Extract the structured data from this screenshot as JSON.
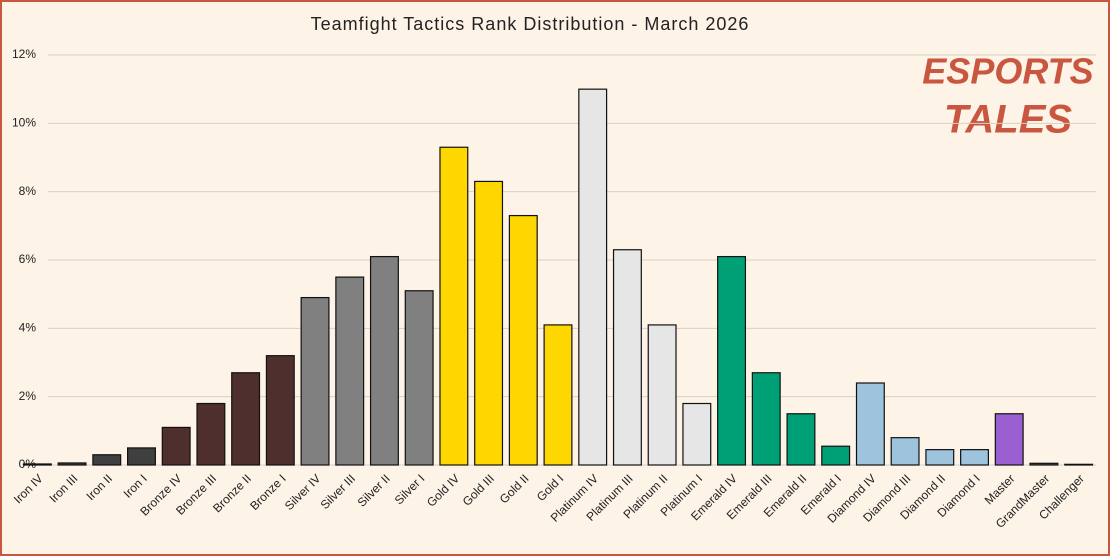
{
  "chart_data": {
    "type": "bar",
    "title": "Teamfight Tactics Rank Distribution - March 2026",
    "logo": [
      "ESPORTS",
      "TALES"
    ],
    "categories": [
      "Iron IV",
      "Iron III",
      "Iron II",
      "Iron I",
      "Bronze IV",
      "Bronze III",
      "Bronze II",
      "Bronze I",
      "Silver IV",
      "Silver III",
      "Silver II",
      "Silver I",
      "Gold IV",
      "Gold III",
      "Gold II",
      "Gold I",
      "Platinum IV",
      "Platinum III",
      "Platinum II",
      "Platinum I",
      "Emerald IV",
      "Emerald III",
      "Emerald II",
      "Emerald I",
      "Diamond IV",
      "Diamond III",
      "Diamond II",
      "Diamond I",
      "Master",
      "GrandMaster",
      "Challenger"
    ],
    "values": [
      0.03,
      0.06,
      0.3,
      0.5,
      1.1,
      1.8,
      2.7,
      3.2,
      4.9,
      5.5,
      6.1,
      5.1,
      9.3,
      8.3,
      7.3,
      4.1,
      11.0,
      6.3,
      4.1,
      1.8,
      6.1,
      2.7,
      1.5,
      0.55,
      2.4,
      0.8,
      0.45,
      0.45,
      1.5,
      0.05,
      0.02
    ],
    "colors": [
      "#3f3f3f",
      "#3f3f3f",
      "#3f3f3f",
      "#3f3f3f",
      "#4e2f2d",
      "#4e2f2d",
      "#4e2f2d",
      "#4e2f2d",
      "#808080",
      "#808080",
      "#808080",
      "#808080",
      "#ffd700",
      "#ffd700",
      "#ffd700",
      "#ffd700",
      "#e6e6e6",
      "#e6e6e6",
      "#e6e6e6",
      "#e6e6e6",
      "#00a077",
      "#00a077",
      "#00a077",
      "#00a077",
      "#9dc3dd",
      "#9dc3dd",
      "#9dc3dd",
      "#9dc3dd",
      "#9a5fd0",
      "#555555",
      "#555555"
    ],
    "ylim": [
      0,
      12
    ],
    "yticks": [
      {
        "value": 0,
        "label": "0%"
      },
      {
        "value": 2,
        "label": "2%"
      },
      {
        "value": 4,
        "label": "4%"
      },
      {
        "value": 6,
        "label": "6%"
      },
      {
        "value": 8,
        "label": "8%"
      },
      {
        "value": 10,
        "label": "10%"
      },
      {
        "value": 12,
        "label": "12%"
      }
    ],
    "grid": true
  }
}
